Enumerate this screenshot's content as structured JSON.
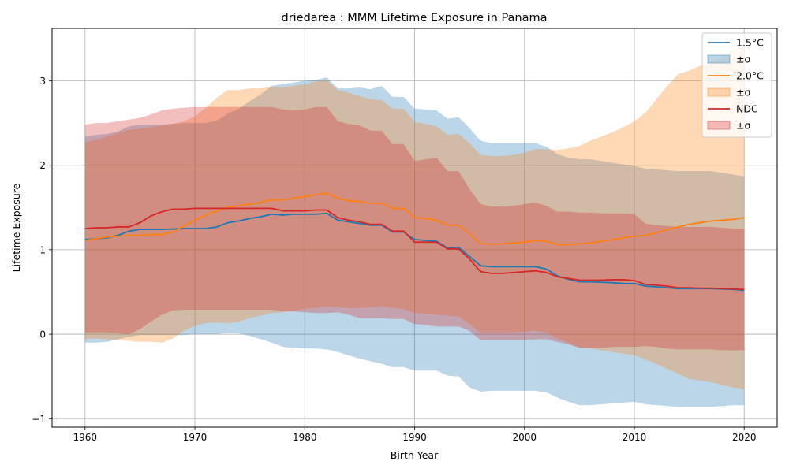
{
  "chart_data": {
    "type": "line",
    "title": "driedarea : MMM Lifetime Exposure in Panama",
    "xlabel": "Birth Year",
    "ylabel": "Lifetime Exposure",
    "xlim": [
      1957,
      2023
    ],
    "ylim": [
      -1.1,
      3.62
    ],
    "xticks": [
      1960,
      1970,
      1980,
      1990,
      2000,
      2010,
      2020
    ],
    "yticks": [
      -1,
      0,
      1,
      2,
      3
    ],
    "grid": true,
    "legend_position": "top-right",
    "legend": [
      "1.5°C",
      "±σ",
      "2.0°C",
      "±σ",
      "NDC",
      "±σ"
    ],
    "x": [
      1960,
      1961,
      1962,
      1963,
      1964,
      1965,
      1966,
      1967,
      1968,
      1969,
      1970,
      1971,
      1972,
      1973,
      1974,
      1975,
      1976,
      1977,
      1978,
      1979,
      1980,
      1981,
      1982,
      1983,
      1984,
      1985,
      1986,
      1987,
      1988,
      1989,
      1990,
      1991,
      1992,
      1993,
      1994,
      1995,
      1996,
      1997,
      1998,
      1999,
      2000,
      2001,
      2002,
      2003,
      2004,
      2005,
      2006,
      2007,
      2008,
      2009,
      2010,
      2011,
      2012,
      2013,
      2014,
      2015,
      2016,
      2017,
      2018,
      2019,
      2020
    ],
    "series": [
      {
        "name": "1.5°C",
        "band_label": "±σ",
        "color": "#1f77b4",
        "band_color": "#1f77b4",
        "values": [
          1.12,
          1.13,
          1.14,
          1.17,
          1.22,
          1.24,
          1.24,
          1.24,
          1.245,
          1.25,
          1.25,
          1.25,
          1.27,
          1.32,
          1.34,
          1.37,
          1.39,
          1.42,
          1.41,
          1.42,
          1.42,
          1.42,
          1.43,
          1.35,
          1.33,
          1.31,
          1.29,
          1.29,
          1.21,
          1.21,
          1.12,
          1.11,
          1.1,
          1.02,
          1.03,
          0.92,
          0.81,
          0.8,
          0.8,
          0.8,
          0.8,
          0.8,
          0.77,
          0.69,
          0.65,
          0.62,
          0.62,
          0.615,
          0.61,
          0.6,
          0.6,
          0.57,
          0.56,
          0.55,
          0.54,
          0.54,
          0.54,
          0.54,
          0.535,
          0.53,
          0.52
        ],
        "lower": [
          -0.1,
          -0.1,
          -0.09,
          -0.06,
          -0.03,
          -0.01,
          -0.01,
          -0.01,
          -0.01,
          -0.01,
          0.0,
          0.0,
          0.0,
          0.02,
          0.01,
          -0.02,
          -0.06,
          -0.1,
          -0.15,
          -0.16,
          -0.17,
          -0.17,
          -0.18,
          -0.21,
          -0.25,
          -0.29,
          -0.32,
          -0.35,
          -0.39,
          -0.39,
          -0.43,
          -0.43,
          -0.43,
          -0.49,
          -0.5,
          -0.63,
          -0.68,
          -0.67,
          -0.67,
          -0.67,
          -0.67,
          -0.67,
          -0.69,
          -0.75,
          -0.8,
          -0.84,
          -0.84,
          -0.83,
          -0.82,
          -0.81,
          -0.8,
          -0.83,
          -0.84,
          -0.85,
          -0.86,
          -0.86,
          -0.86,
          -0.86,
          -0.85,
          -0.84,
          -0.84
        ],
        "upper": [
          2.34,
          2.36,
          2.37,
          2.4,
          2.46,
          2.48,
          2.48,
          2.48,
          2.49,
          2.5,
          2.5,
          2.5,
          2.53,
          2.61,
          2.67,
          2.76,
          2.84,
          2.94,
          2.96,
          2.98,
          3.0,
          3.01,
          3.04,
          2.91,
          2.91,
          2.92,
          2.9,
          2.94,
          2.81,
          2.81,
          2.67,
          2.66,
          2.65,
          2.55,
          2.57,
          2.44,
          2.29,
          2.26,
          2.26,
          2.26,
          2.26,
          2.26,
          2.22,
          2.13,
          2.09,
          2.07,
          2.07,
          2.05,
          2.03,
          2.01,
          1.99,
          1.96,
          1.95,
          1.94,
          1.93,
          1.93,
          1.93,
          1.93,
          1.91,
          1.89,
          1.87
        ]
      },
      {
        "name": "2.0°C",
        "band_label": "±σ",
        "color": "#ff7f0e",
        "band_color": "#ff7f0e",
        "values": [
          1.11,
          1.13,
          1.15,
          1.16,
          1.17,
          1.17,
          1.18,
          1.18,
          1.21,
          1.28,
          1.35,
          1.41,
          1.46,
          1.5,
          1.52,
          1.54,
          1.56,
          1.59,
          1.59,
          1.61,
          1.63,
          1.65,
          1.67,
          1.61,
          1.58,
          1.57,
          1.55,
          1.55,
          1.49,
          1.49,
          1.38,
          1.37,
          1.35,
          1.29,
          1.29,
          1.19,
          1.07,
          1.065,
          1.07,
          1.08,
          1.09,
          1.11,
          1.1,
          1.06,
          1.06,
          1.07,
          1.08,
          1.1,
          1.12,
          1.14,
          1.16,
          1.17,
          1.2,
          1.24,
          1.27,
          1.3,
          1.32,
          1.34,
          1.35,
          1.36,
          1.38
        ],
        "lower": [
          -0.06,
          -0.05,
          -0.06,
          -0.07,
          -0.08,
          -0.09,
          -0.09,
          -0.1,
          -0.05,
          0.04,
          0.1,
          0.13,
          0.14,
          0.13,
          0.15,
          0.19,
          0.22,
          0.25,
          0.26,
          0.28,
          0.3,
          0.31,
          0.33,
          0.32,
          0.31,
          0.31,
          0.32,
          0.33,
          0.31,
          0.3,
          0.25,
          0.24,
          0.23,
          0.22,
          0.21,
          0.12,
          0.02,
          0.02,
          0.02,
          0.02,
          0.03,
          0.04,
          0.02,
          -0.05,
          -0.1,
          -0.16,
          -0.17,
          -0.19,
          -0.21,
          -0.23,
          -0.25,
          -0.3,
          -0.35,
          -0.41,
          -0.47,
          -0.53,
          -0.55,
          -0.57,
          -0.6,
          -0.63,
          -0.65
        ],
        "upper": [
          2.27,
          2.3,
          2.34,
          2.38,
          2.42,
          2.43,
          2.45,
          2.47,
          2.49,
          2.52,
          2.58,
          2.68,
          2.8,
          2.89,
          2.89,
          2.91,
          2.91,
          2.93,
          2.92,
          2.94,
          2.96,
          2.99,
          3.01,
          2.89,
          2.86,
          2.82,
          2.78,
          2.77,
          2.67,
          2.67,
          2.51,
          2.49,
          2.46,
          2.36,
          2.37,
          2.26,
          2.12,
          2.11,
          2.11,
          2.12,
          2.15,
          2.19,
          2.19,
          2.18,
          2.2,
          2.23,
          2.29,
          2.34,
          2.39,
          2.45,
          2.52,
          2.62,
          2.78,
          2.94,
          3.08,
          3.12,
          3.18,
          3.22,
          3.28,
          3.36,
          3.42
        ]
      },
      {
        "name": "NDC",
        "band_label": "±σ",
        "color": "#d62728",
        "band_color": "#d62728",
        "values": [
          1.25,
          1.26,
          1.26,
          1.27,
          1.27,
          1.32,
          1.4,
          1.45,
          1.48,
          1.48,
          1.49,
          1.49,
          1.49,
          1.49,
          1.49,
          1.49,
          1.49,
          1.49,
          1.46,
          1.46,
          1.46,
          1.47,
          1.47,
          1.38,
          1.35,
          1.33,
          1.3,
          1.3,
          1.22,
          1.22,
          1.09,
          1.09,
          1.09,
          1.01,
          1.01,
          0.89,
          0.74,
          0.72,
          0.72,
          0.73,
          0.74,
          0.75,
          0.73,
          0.68,
          0.66,
          0.64,
          0.64,
          0.64,
          0.645,
          0.645,
          0.635,
          0.59,
          0.58,
          0.57,
          0.55,
          0.55,
          0.545,
          0.545,
          0.54,
          0.535,
          0.53
        ],
        "lower": [
          0.02,
          0.02,
          0.02,
          0.01,
          0.0,
          0.06,
          0.15,
          0.23,
          0.28,
          0.29,
          0.29,
          0.29,
          0.29,
          0.29,
          0.29,
          0.29,
          0.29,
          0.29,
          0.27,
          0.27,
          0.26,
          0.25,
          0.25,
          0.26,
          0.23,
          0.19,
          0.19,
          0.19,
          0.18,
          0.18,
          0.12,
          0.11,
          0.09,
          0.09,
          0.09,
          0.04,
          -0.07,
          -0.07,
          -0.07,
          -0.07,
          -0.07,
          -0.06,
          -0.06,
          -0.09,
          -0.12,
          -0.16,
          -0.16,
          -0.16,
          -0.15,
          -0.15,
          -0.15,
          -0.14,
          -0.15,
          -0.17,
          -0.18,
          -0.18,
          -0.18,
          -0.18,
          -0.19,
          -0.19,
          -0.19
        ],
        "upper": [
          2.48,
          2.5,
          2.5,
          2.52,
          2.54,
          2.56,
          2.6,
          2.65,
          2.67,
          2.68,
          2.69,
          2.69,
          2.69,
          2.69,
          2.69,
          2.69,
          2.69,
          2.69,
          2.66,
          2.65,
          2.66,
          2.69,
          2.69,
          2.52,
          2.49,
          2.47,
          2.41,
          2.41,
          2.25,
          2.25,
          2.05,
          2.07,
          2.09,
          1.93,
          1.93,
          1.72,
          1.54,
          1.51,
          1.51,
          1.52,
          1.54,
          1.56,
          1.52,
          1.45,
          1.45,
          1.44,
          1.44,
          1.43,
          1.43,
          1.43,
          1.42,
          1.31,
          1.29,
          1.28,
          1.27,
          1.27,
          1.27,
          1.27,
          1.26,
          1.25,
          1.25
        ]
      }
    ]
  }
}
